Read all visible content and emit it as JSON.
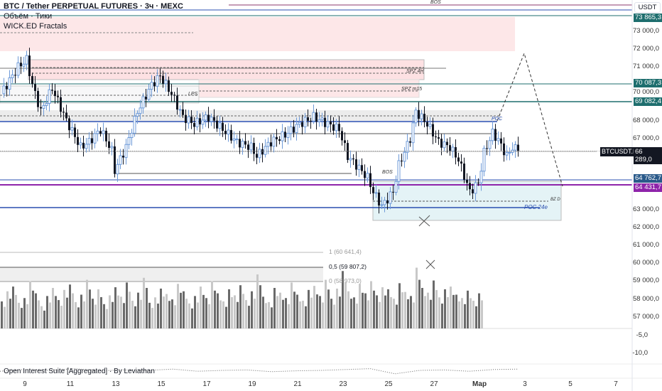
{
  "legend": {
    "symbol_title": "BTC / Tether PERPETUAL FUTURES · 3ч · MEXC",
    "volume": "Объём · Тики",
    "indicator": "WICK.ED Fractals",
    "oi_indicator": "Open Interest Suite [Aggregated] · By Leviathan"
  },
  "price_axis": {
    "currency": "USDT",
    "ticks": [
      "73 000,0",
      "72 000,0",
      "71 000,0",
      "70 000,0",
      "68 000,0",
      "67 000,0",
      "63 000,0",
      "62 000,0",
      "61 000,0",
      "60 000,0",
      "59 000,0",
      "58 000,0",
      "57 000,0"
    ],
    "tick_values": [
      73000,
      72000,
      71000,
      70000,
      68000,
      67000,
      63000,
      62000,
      61000,
      60000,
      59000,
      58000,
      57000
    ],
    "oi_ticks": [
      "-5,0",
      "-10,0"
    ]
  },
  "price_tags": [
    {
      "label": "73 865,3",
      "price": 73865.3,
      "color": "#1e6e6e"
    },
    {
      "label": "70 087,3",
      "price": 70087.3,
      "color": "#1e6e6e"
    },
    {
      "label": "69 082,4",
      "price": 69082.4,
      "color": "#1e6e6e"
    },
    {
      "label": "64 762,7",
      "price": 64762.7,
      "color": "#2a5a8a"
    },
    {
      "label": "64 431,7",
      "price": 64431.7,
      "color": "#8e24aa"
    }
  ],
  "last_price": {
    "symbol": "BTCUSDT.P",
    "price": "66 289,0",
    "countdown": "02:57:39",
    "value": 66289
  },
  "zone_labels": {
    "bos_top": "BOS",
    "spz_4h": "SPZ 4H",
    "spz_m15": "SPZ m15",
    "lps": "LPS",
    "poc": "POC",
    "bos": "BOS",
    "bz_d": "BZ D",
    "poc_24": "POC 24e"
  },
  "fib_levels": [
    {
      "label": "1 (60 641,4)"
    },
    {
      "label": "0,5 (59 807,2)"
    },
    {
      "label": "0 (58 973,0)"
    }
  ],
  "x_axis": [
    "9",
    "11",
    "13",
    "15",
    "17",
    "19",
    "21",
    "23",
    "25",
    "27",
    "Мар",
    "3",
    "5",
    "7"
  ],
  "colors": {
    "up": "#6f9bd8",
    "down": "#131722",
    "teal": "#1e6e6e",
    "purple": "#8e24aa",
    "blue": "#2a4fb0"
  },
  "price_path": [
    [
      0,
      69500
    ],
    [
      4,
      70500
    ],
    [
      6,
      71000
    ],
    [
      9,
      71400
    ],
    [
      11,
      70000
    ],
    [
      14,
      68500
    ],
    [
      18,
      69800
    ],
    [
      23,
      68000
    ],
    [
      28,
      66500
    ],
    [
      31,
      66800
    ],
    [
      35,
      67500
    ],
    [
      39,
      66300
    ],
    [
      40,
      65200
    ],
    [
      44,
      66500
    ],
    [
      48,
      68500
    ],
    [
      53,
      70000
    ],
    [
      56,
      70500
    ],
    [
      60,
      69500
    ],
    [
      64,
      68200
    ],
    [
      68,
      67800
    ],
    [
      73,
      68200
    ],
    [
      78,
      67500
    ],
    [
      83,
      66800
    ],
    [
      88,
      66500
    ],
    [
      90,
      66000
    ],
    [
      95,
      66800
    ],
    [
      100,
      67200
    ],
    [
      105,
      67800
    ],
    [
      110,
      68200
    ],
    [
      115,
      67800
    ],
    [
      119,
      67500
    ],
    [
      122,
      66000
    ],
    [
      125,
      65500
    ],
    [
      129,
      64800
    ],
    [
      131,
      64000
    ],
    [
      134,
      63200
    ],
    [
      138,
      64000
    ],
    [
      140,
      65500
    ],
    [
      144,
      67000
    ],
    [
      146,
      68500
    ],
    [
      150,
      67800
    ],
    [
      154,
      66800
    ],
    [
      158,
      66500
    ],
    [
      161,
      65800
    ],
    [
      165,
      64000
    ],
    [
      168,
      64500
    ],
    [
      170,
      66200
    ],
    [
      173,
      67300
    ],
    [
      175,
      66900
    ],
    [
      178,
      66000
    ],
    [
      180,
      66500
    ],
    [
      182,
      66289
    ]
  ],
  "volumes": [
    40,
    55,
    62,
    38,
    45,
    70,
    52,
    33,
    48,
    60,
    42,
    57,
    65,
    39,
    50,
    72,
    44,
    58,
    36,
    49,
    61,
    47,
    68,
    41,
    53,
    75,
    38,
    46,
    59,
    51,
    43,
    66,
    55,
    37,
    48,
    62,
    45,
    70,
    52,
    40,
    58,
    49,
    64,
    42,
    55,
    80,
    47,
    39,
    60,
    53,
    45,
    68,
    50,
    41,
    57,
    63,
    48,
    72,
    44,
    59,
    85,
    55,
    46,
    66,
    52,
    70,
    49,
    61,
    58,
    44,
    67,
    54,
    48,
    90,
    60,
    53,
    71,
    46,
    58,
    62,
    50,
    45,
    56,
    41,
    52
  ],
  "oi_path": [
    0.6,
    0.4,
    0.5,
    0.3,
    0.55,
    0.45,
    0.5,
    0.35,
    0.6,
    0.5,
    0.45,
    0.65,
    0.55,
    0.5,
    0.4,
    0.3,
    0.9,
    0.5,
    0.45,
    0.6,
    0.4,
    0.35
  ]
}
